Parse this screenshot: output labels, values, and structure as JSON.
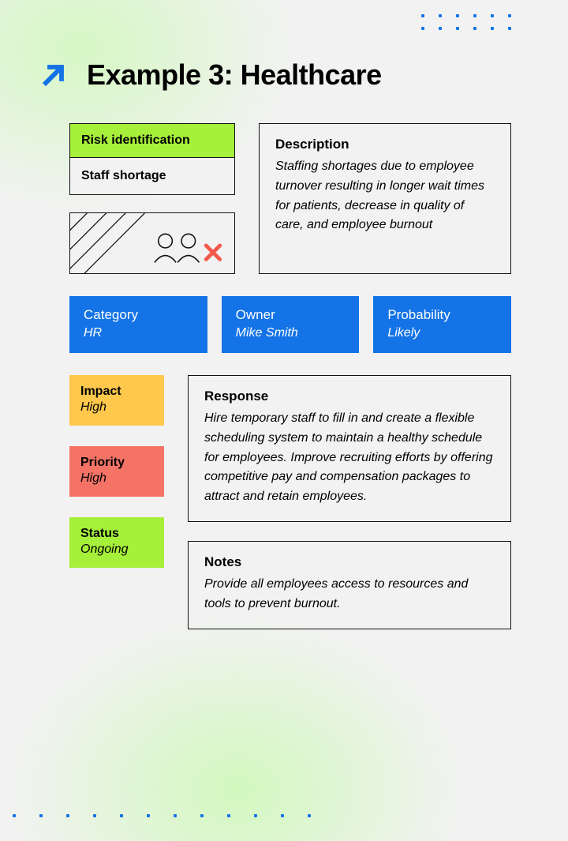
{
  "colors": {
    "page_bg": "#f2f2f2",
    "gradient_green": "#c8f59a",
    "accent_blue": "#1473e6",
    "border": "#111111",
    "text": "#000000",
    "lime": "#a6ef3a",
    "card_blue": "#1473e6",
    "yellow": "#ffc84d",
    "coral": "#f57366",
    "x_red": "#f15a4a"
  },
  "title": "Example 3: Healthcare",
  "risk": {
    "header": "Risk identification",
    "value": "Staff shortage"
  },
  "description": {
    "title": "Description",
    "body": "Staffing shortages due to employee turnover resulting in longer wait times for patients, decrease in quality of care, and employee burnout"
  },
  "meta": [
    {
      "label": "Category",
      "value": "HR",
      "bg": "#1473e6",
      "fg": "#ffffff"
    },
    {
      "label": "Owner",
      "value": "Mike Smith",
      "bg": "#1473e6",
      "fg": "#ffffff"
    },
    {
      "label": "Probability",
      "value": "Likely",
      "bg": "#1473e6",
      "fg": "#ffffff"
    }
  ],
  "side": [
    {
      "label": "Impact",
      "value": "High",
      "bg": "#ffc84d"
    },
    {
      "label": "Priority",
      "value": "High",
      "bg": "#f57366"
    },
    {
      "label": "Status",
      "value": "Ongoing",
      "bg": "#a6ef3a"
    }
  ],
  "response": {
    "title": "Response",
    "body": "Hire temporary staff to fill in and create a flexible scheduling system to maintain a healthy schedule for employees. Improve recruiting efforts by offering competitive pay and compensation packages to attract and retain employees."
  },
  "notes": {
    "title": "Notes",
    "body": "Provide all employees access to resources and tools to prevent burnout."
  }
}
